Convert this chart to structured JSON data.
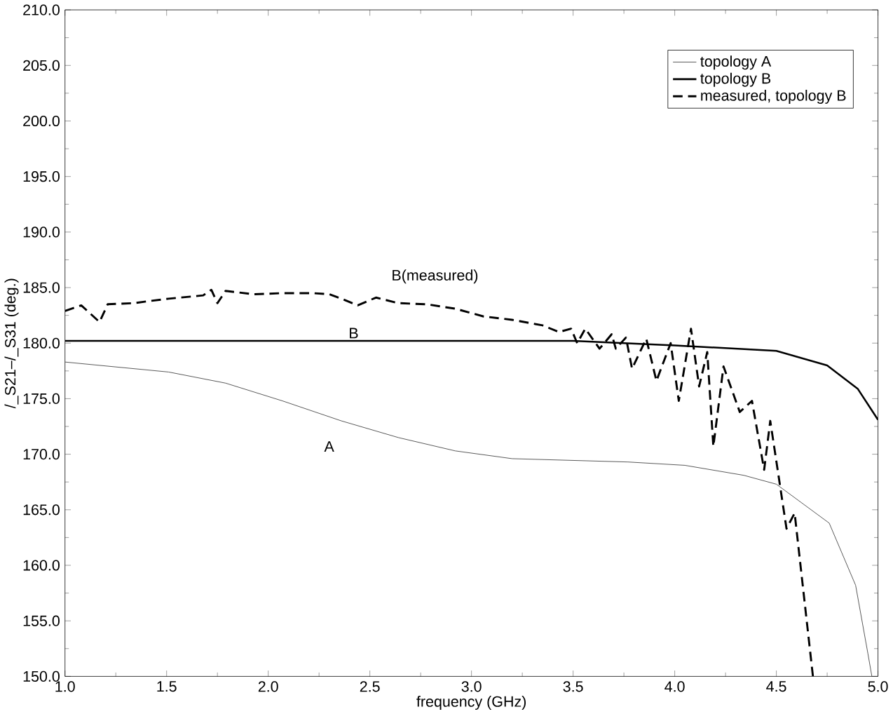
{
  "chart_data": {
    "type": "line",
    "xlabel": "frequency (GHz)",
    "ylabel": "/_S21–/_S31 (deg.)",
    "xlim": [
      1.0,
      5.0
    ],
    "xticks": [
      {
        "value": 1.0,
        "label": "1.0"
      },
      {
        "value": 1.5,
        "label": "1.5"
      },
      {
        "value": 2.0,
        "label": "2.0"
      },
      {
        "value": 2.5,
        "label": "2.5"
      },
      {
        "value": 3.0,
        "label": "3.0"
      },
      {
        "value": 3.5,
        "label": "3.5"
      },
      {
        "value": 4.0,
        "label": "4.0"
      },
      {
        "value": 4.5,
        "label": "4.5"
      },
      {
        "value": 5.0,
        "label": "5.0"
      }
    ],
    "ylim": [
      150.0,
      210.0
    ],
    "yticks": [
      {
        "value": 150,
        "label": "150.0"
      },
      {
        "value": 155,
        "label": "155.0"
      },
      {
        "value": 160,
        "label": "160.0"
      },
      {
        "value": 165,
        "label": "165.0"
      },
      {
        "value": 170,
        "label": "170.0"
      },
      {
        "value": 175,
        "label": "175.0"
      },
      {
        "value": 180,
        "label": "180.0"
      },
      {
        "value": 185,
        "label": "185.0"
      },
      {
        "value": 190,
        "label": "190.0"
      },
      {
        "value": 195,
        "label": "195.0"
      },
      {
        "value": 200,
        "label": "200.0"
      },
      {
        "value": 205,
        "label": "205.0"
      },
      {
        "value": 210,
        "label": "210.0"
      }
    ],
    "grid": false,
    "legend": "top right",
    "marker": "none",
    "series": [
      {
        "name": "topology A",
        "color": "#555555",
        "line_style": "solid",
        "x": [
          1.0,
          1.51,
          1.79,
          2.07,
          2.36,
          2.64,
          2.92,
          3.2,
          3.77,
          4.05,
          4.34,
          4.5,
          4.76,
          4.89,
          4.95,
          4.97
        ],
        "values": [
          178.3,
          177.4,
          176.4,
          174.8,
          173.0,
          171.5,
          170.3,
          169.6,
          169.3,
          169.0,
          168.1,
          167.3,
          163.8,
          158.2,
          152.1,
          150.0
        ]
      },
      {
        "name": "topology B",
        "color": "#000000",
        "line_style": "solid",
        "x": [
          1.0,
          2.0,
          3.0,
          3.5,
          4.0,
          4.2,
          4.5,
          4.75,
          4.9,
          5.0
        ],
        "values": [
          180.2,
          180.2,
          180.2,
          180.2,
          179.8,
          179.6,
          179.3,
          178.0,
          175.9,
          173.1
        ]
      },
      {
        "name": "measured, topology B",
        "color": "#000000",
        "line_style": "dashed",
        "x": [
          1.0,
          1.08,
          1.17,
          1.21,
          1.34,
          1.42,
          1.51,
          1.68,
          1.72,
          1.75,
          1.79,
          1.93,
          2.07,
          2.22,
          2.3,
          2.36,
          2.44,
          2.53,
          2.64,
          2.78,
          2.92,
          3.06,
          3.2,
          3.35,
          3.43,
          3.49,
          3.52,
          3.56,
          3.63,
          3.69,
          3.71,
          3.76,
          3.79,
          3.86,
          3.91,
          3.98,
          4.02,
          4.08,
          4.12,
          4.16,
          4.19,
          4.24,
          4.32,
          4.38,
          4.44,
          4.47,
          4.55,
          4.59,
          4.68
        ],
        "values": [
          182.9,
          183.4,
          181.9,
          183.5,
          183.6,
          183.8,
          184.0,
          184.3,
          184.8,
          183.6,
          184.7,
          184.4,
          184.5,
          184.5,
          184.4,
          184.0,
          183.4,
          184.1,
          183.6,
          183.5,
          183.1,
          182.4,
          182.1,
          181.6,
          181.0,
          181.3,
          180.0,
          181.3,
          179.5,
          180.8,
          179.5,
          180.5,
          177.7,
          180.4,
          176.6,
          180.0,
          174.8,
          181.3,
          176.1,
          179.2,
          170.7,
          177.9,
          173.8,
          174.8,
          168.6,
          173.0,
          163.3,
          164.7,
          150.0
        ]
      }
    ],
    "annotations": [
      "B(measured)",
      "B",
      "A"
    ]
  }
}
